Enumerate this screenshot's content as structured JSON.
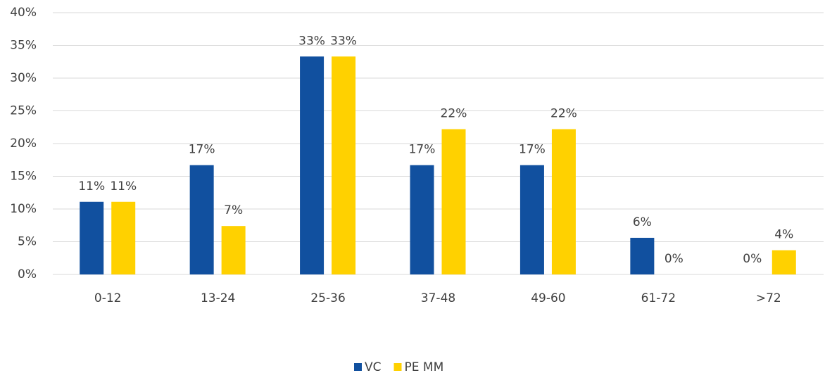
{
  "chart_data": {
    "type": "bar",
    "categories": [
      "0-12",
      "13-24",
      "25-36",
      "37-48",
      "49-60",
      "61-72",
      ">72"
    ],
    "series": [
      {
        "name": "VC",
        "color": "#11509f",
        "values": [
          11.1,
          16.7,
          33.3,
          16.7,
          16.7,
          5.6,
          0
        ],
        "value_labels": [
          "11%",
          "17%",
          "33%",
          "17%",
          "17%",
          "6%",
          "0%"
        ]
      },
      {
        "name": "PE MM",
        "color": "#ffd100",
        "values": [
          11.1,
          7.4,
          33.3,
          22.2,
          22.2,
          0,
          3.7
        ],
        "value_labels": [
          "11%",
          "7%",
          "33%",
          "22%",
          "22%",
          "0%",
          "4%"
        ]
      }
    ],
    "ylim": [
      0,
      40
    ],
    "yticks": [
      {
        "value": 0,
        "label": "0%"
      },
      {
        "value": 5,
        "label": "5%"
      },
      {
        "value": 10,
        "label": "10%"
      },
      {
        "value": 15,
        "label": "15%"
      },
      {
        "value": 20,
        "label": "20%"
      },
      {
        "value": 25,
        "label": "25%"
      },
      {
        "value": 30,
        "label": "30%"
      },
      {
        "value": 35,
        "label": "35%"
      },
      {
        "value": 40,
        "label": "40%"
      }
    ],
    "grid": true,
    "legend": "bottom"
  }
}
